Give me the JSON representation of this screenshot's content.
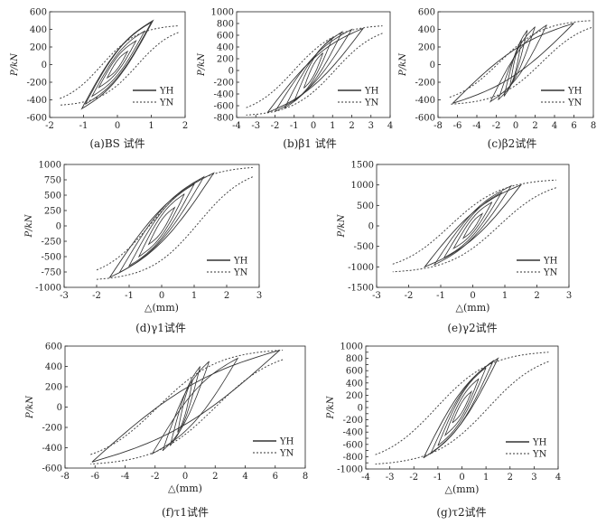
{
  "figure": {
    "panel_order": [
      "a",
      "b",
      "c",
      "d",
      "e",
      "f",
      "g"
    ]
  },
  "chart_data": [
    {
      "id": "a",
      "type": "line",
      "caption": "(a)BS 试件",
      "ylabel": "P/kN",
      "xlabel": "",
      "xlim": [
        -2,
        2
      ],
      "ylim": [
        -600,
        600
      ],
      "xticks": [
        -2,
        -1,
        0,
        1,
        2
      ],
      "yticks": [
        -600,
        -400,
        -200,
        0,
        200,
        400,
        600
      ],
      "legend": "bottom-right",
      "series": [
        {
          "name": "YH",
          "style": "solid",
          "loops": [
            [
              -0.3,
              -150,
              0.3,
              150
            ],
            [
              -0.55,
              -260,
              0.55,
              270
            ],
            [
              -0.75,
              -360,
              0.8,
              380
            ],
            [
              -0.95,
              -450,
              1.0,
              480
            ],
            [
              -1.05,
              -500,
              1.05,
              500
            ]
          ]
        },
        {
          "name": "YN",
          "style": "dotted",
          "envelope": [
            [
              -1.7,
              -460
            ],
            [
              -1.0,
              -420
            ],
            [
              0,
              0
            ],
            [
              1.0,
              400
            ],
            [
              1.8,
              440
            ]
          ]
        }
      ]
    },
    {
      "id": "b",
      "type": "line",
      "caption": "(b)β1 试件",
      "ylabel": "P/kN",
      "xlabel": "",
      "xlim": [
        -4,
        4
      ],
      "ylim": [
        -800,
        1000
      ],
      "xticks": [
        -4,
        -3,
        -2,
        -1,
        0,
        1,
        2,
        3,
        4
      ],
      "yticks": [
        -800,
        -600,
        -400,
        -200,
        0,
        200,
        400,
        600,
        800,
        1000
      ],
      "legend": "bottom-right",
      "series": [
        {
          "name": "YH",
          "style": "solid",
          "loops": [
            [
              -0.5,
              -300,
              0.5,
              300
            ],
            [
              -1.0,
              -520,
              1.0,
              560
            ],
            [
              -1.5,
              -640,
              1.5,
              660
            ],
            [
              -2.0,
              -700,
              2.0,
              700
            ],
            [
              -2.4,
              -720,
              2.6,
              720
            ]
          ]
        },
        {
          "name": "YN",
          "style": "dotted",
          "envelope": [
            [
              -3.5,
              -760
            ],
            [
              -2.0,
              -700
            ],
            [
              0,
              0
            ],
            [
              2.0,
              700
            ],
            [
              3.6,
              760
            ]
          ]
        }
      ]
    },
    {
      "id": "c",
      "type": "line",
      "caption": "(c)β2试件",
      "ylabel": "P/kN",
      "xlabel": "",
      "xlim": [
        -8,
        8
      ],
      "ylim": [
        -600,
        600
      ],
      "xticks": [
        -8,
        -6,
        -4,
        -2,
        0,
        2,
        4,
        6,
        8
      ],
      "yticks": [
        -600,
        -400,
        -200,
        0,
        200,
        400,
        600
      ],
      "legend": "bottom-right",
      "series": [
        {
          "name": "YH",
          "style": "solid",
          "loops": [
            [
              -0.6,
              -250,
              0.6,
              280
            ],
            [
              -1.2,
              -360,
              1.2,
              390
            ],
            [
              -1.8,
              -400,
              2.0,
              430
            ],
            [
              -2.6,
              -420,
              3.2,
              450
            ],
            [
              -6.5,
              -440,
              6.0,
              470
            ]
          ]
        },
        {
          "name": "YN",
          "style": "dotted",
          "envelope": [
            [
              -6.8,
              -450
            ],
            [
              -2.0,
              -400
            ],
            [
              0,
              0
            ],
            [
              2.0,
              420
            ],
            [
              7.8,
              500
            ]
          ]
        }
      ]
    },
    {
      "id": "d",
      "type": "line",
      "caption": "(d)γ1试件",
      "ylabel": "P/kN",
      "xlabel": "△(mm)",
      "xlim": [
        -3,
        3
      ],
      "ylim": [
        -1000,
        1000
      ],
      "xticks": [
        -3,
        -2,
        -1,
        0,
        1,
        2,
        3
      ],
      "yticks": [
        -1000,
        -750,
        -500,
        -250,
        0,
        250,
        500,
        750,
        1000
      ],
      "legend": "bottom-right",
      "series": [
        {
          "name": "YH",
          "style": "solid",
          "loops": [
            [
              -0.4,
              -300,
              0.4,
              300
            ],
            [
              -0.7,
              -500,
              0.7,
              520
            ],
            [
              -1.0,
              -650,
              1.0,
              680
            ],
            [
              -1.3,
              -760,
              1.3,
              800
            ],
            [
              -1.6,
              -840,
              1.6,
              860
            ]
          ]
        },
        {
          "name": "YN",
          "style": "dotted",
          "envelope": [
            [
              -2.0,
              -870
            ],
            [
              -1.2,
              -780
            ],
            [
              0,
              0
            ],
            [
              1.2,
              800
            ],
            [
              2.8,
              950
            ]
          ]
        }
      ]
    },
    {
      "id": "e",
      "type": "line",
      "caption": "(e)γ2试件",
      "ylabel": "P/kN",
      "xlabel": "△(mm)",
      "xlim": [
        -3,
        3
      ],
      "ylim": [
        -1500,
        1500
      ],
      "xticks": [
        -3,
        -2,
        -1,
        0,
        1,
        2,
        3
      ],
      "yticks": [
        -1500,
        -1000,
        -500,
        0,
        500,
        1000,
        1500
      ],
      "legend": "bottom-right",
      "series": [
        {
          "name": "YH",
          "style": "solid",
          "loops": [
            [
              -0.3,
              -300,
              0.3,
              300
            ],
            [
              -0.6,
              -550,
              0.6,
              580
            ],
            [
              -0.9,
              -780,
              0.9,
              820
            ],
            [
              -1.2,
              -950,
              1.2,
              980
            ],
            [
              -1.5,
              -1000,
              1.5,
              1000
            ]
          ]
        },
        {
          "name": "YN",
          "style": "dotted",
          "envelope": [
            [
              -2.5,
              -1120
            ],
            [
              -1.3,
              -1000
            ],
            [
              0,
              0
            ],
            [
              1.3,
              1000
            ],
            [
              2.6,
              1120
            ]
          ]
        }
      ]
    },
    {
      "id": "f",
      "type": "line",
      "caption": "(f)τ1试件",
      "ylabel": "P/kN",
      "xlabel": "△(mm)",
      "xlim": [
        -8,
        8
      ],
      "ylim": [
        -600,
        600
      ],
      "xticks": [
        -8,
        -6,
        -4,
        -2,
        0,
        2,
        4,
        6,
        8
      ],
      "yticks": [
        -600,
        -400,
        -200,
        0,
        200,
        400,
        600
      ],
      "legend": "bottom-right",
      "series": [
        {
          "name": "YH",
          "style": "solid",
          "loops": [
            [
              -0.5,
              -250,
              0.5,
              270
            ],
            [
              -1.0,
              -380,
              1.0,
              400
            ],
            [
              -1.5,
              -430,
              1.6,
              450
            ],
            [
              -2.2,
              -460,
              3.5,
              480
            ],
            [
              -6.2,
              -540,
              6.3,
              560
            ]
          ]
        },
        {
          "name": "YN",
          "style": "dotted",
          "envelope": [
            [
              -6.3,
              -560
            ],
            [
              -2.0,
              -460
            ],
            [
              0,
              0
            ],
            [
              2.0,
              470
            ],
            [
              6.5,
              560
            ]
          ]
        }
      ]
    },
    {
      "id": "g",
      "type": "line",
      "caption": "(g)τ2试件",
      "ylabel": "P/kN",
      "xlabel": "△(mm)",
      "xlim": [
        -4,
        4
      ],
      "ylim": [
        -1000,
        1000
      ],
      "xticks": [
        -4,
        -3,
        -2,
        -1,
        0,
        1,
        2,
        3,
        4
      ],
      "yticks": [
        -1000,
        -900,
        -800,
        -700,
        -600,
        -500,
        -400,
        -300,
        -200,
        -100,
        0,
        100,
        200,
        300,
        400,
        500,
        600,
        700,
        800,
        900,
        1000
      ],
      "ytick_labels": [
        "-1000",
        "",
        "-800",
        "",
        "-600",
        "",
        "-400",
        "",
        "-200",
        "",
        "0",
        "",
        "200",
        "",
        "400",
        "",
        "600",
        "",
        "800",
        "",
        "1000"
      ],
      "legend": "bottom-right",
      "series": [
        {
          "name": "YH",
          "style": "solid",
          "loops": [
            [
              -0.4,
              -250,
              0.4,
              260
            ],
            [
              -0.7,
              -450,
              0.7,
              470
            ],
            [
              -1.0,
              -620,
              1.0,
              650
            ],
            [
              -1.3,
              -750,
              1.3,
              760
            ],
            [
              -1.6,
              -820,
              1.5,
              800
            ]
          ]
        },
        {
          "name": "YN",
          "style": "dotted",
          "envelope": [
            [
              -3.6,
              -920
            ],
            [
              -1.5,
              -800
            ],
            [
              0,
              0
            ],
            [
              1.5,
              780
            ],
            [
              3.6,
              900
            ]
          ]
        }
      ]
    }
  ]
}
